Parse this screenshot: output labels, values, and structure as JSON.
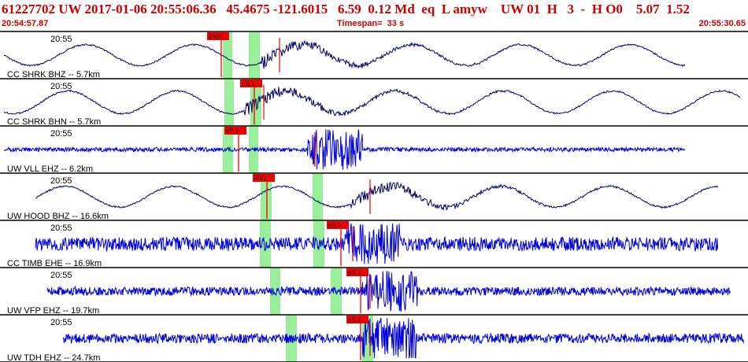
{
  "header": {
    "event_summary": "61227702 UW 2017-01-06 20:55:06.36   45.4675 -121.6015   6.59  0.12 Md  eq  L amyw    UW 01  H   3  -  H O0    5.07  1.52",
    "start_time": "20:54:57.87",
    "timespan_label": "Timespan=  33 s",
    "end_time": "20:55:30.65"
  },
  "colors": {
    "header_text": "#cc0000",
    "trace_black": "#000066",
    "trace_blue": "#0000dd",
    "pick_red": "#ee0000",
    "window_green": "#99ee99",
    "divider": "#000000"
  },
  "channels": [
    {
      "label": "CC SHRK BHZ -- 5.7km",
      "time": "20:55",
      "pick": "iPd0",
      "color": "black",
      "style": "lowfreq",
      "amp": 0.55,
      "onset": 0.35
    },
    {
      "label": "CC SHRK BHN -- 5.7km",
      "time": "20:55",
      "pick": "eS 1",
      "color": "black",
      "style": "lowfreq",
      "amp": 0.6,
      "onset": 0.35
    },
    {
      "label": "UW VLL EHZ -- 6.2km",
      "time": "20:55",
      "pick": "eP 1",
      "color": "blue",
      "style": "highfreq",
      "amp": 0.12,
      "onset": 0.33
    },
    {
      "label": "UW HOOD BHZ -- 16.6km",
      "time": "20:55",
      "pick": "iPd1",
      "color": "black",
      "style": "lowfreq",
      "amp": 0.55,
      "onset": 0.37
    },
    {
      "label": "CC TIMB EHE -- 16.9km",
      "time": "20:55",
      "pick": "eS 2",
      "color": "blue",
      "style": "highfreq",
      "amp": 0.4,
      "onset": 0.44
    },
    {
      "label": "UW VFP EHZ -- 19.7km",
      "time": "20:55",
      "pick": "eS 2",
      "color": "blue",
      "style": "highfreq",
      "amp": 0.25,
      "onset": 0.47
    },
    {
      "label": "UW TDH EHZ -- 24.7km",
      "time": "20:55",
      "pick": "eS 1",
      "color": "blue",
      "style": "highfreq",
      "amp": 0.28,
      "onset": 0.48
    }
  ]
}
